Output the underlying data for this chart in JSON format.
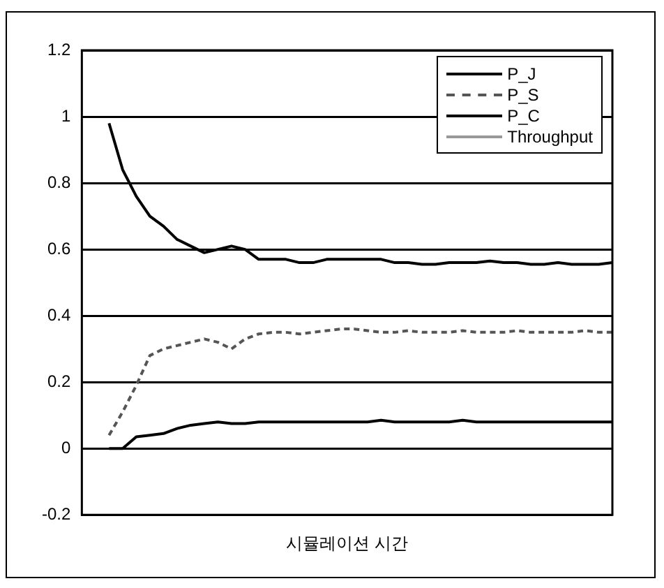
{
  "chart_data": {
    "type": "line",
    "xlabel": "시뮬레이션 시간",
    "categories": [
      null,
      null,
      null,
      null,
      null,
      null,
      null,
      null,
      null,
      null,
      null,
      null,
      null,
      null,
      null,
      null,
      null,
      null,
      null,
      null,
      null,
      null,
      null,
      null,
      null,
      null,
      null,
      null,
      null,
      null,
      null,
      null,
      null,
      null,
      null,
      null,
      null,
      null,
      null,
      null
    ],
    "series": [
      {
        "name": "P_J",
        "color": "#000000",
        "line_style": "solid",
        "values": [
          null,
          null,
          0.98,
          0.84,
          0.76,
          0.7,
          0.67,
          0.63,
          0.61,
          0.59,
          0.6,
          0.61,
          0.6,
          0.57,
          0.57,
          0.57,
          0.56,
          0.56,
          0.57,
          0.57,
          0.57,
          0.57,
          0.57,
          0.56,
          0.56,
          0.555,
          0.555,
          0.56,
          0.56,
          0.56,
          0.565,
          0.56,
          0.56,
          0.555,
          0.555,
          0.56,
          0.555,
          0.555,
          0.555,
          0.56
        ]
      },
      {
        "name": "P_S",
        "color": "#555555",
        "line_style": "dashed",
        "values": [
          null,
          null,
          0.04,
          0.11,
          0.19,
          0.28,
          0.3,
          0.31,
          0.32,
          0.33,
          0.32,
          0.3,
          0.33,
          0.345,
          0.35,
          0.35,
          0.345,
          0.35,
          0.355,
          0.36,
          0.36,
          0.355,
          0.35,
          0.35,
          0.355,
          0.35,
          0.35,
          0.35,
          0.355,
          0.35,
          0.35,
          0.35,
          0.355,
          0.35,
          0.35,
          0.35,
          0.35,
          0.355,
          0.35,
          0.35
        ]
      },
      {
        "name": "P_C",
        "color": "#000000",
        "line_style": "solid",
        "values": [
          null,
          null,
          0,
          0,
          0.035,
          0.04,
          0.045,
          0.06,
          0.07,
          0.075,
          0.08,
          0.075,
          0.075,
          0.08,
          0.08,
          0.08,
          0.08,
          0.08,
          0.08,
          0.08,
          0.08,
          0.08,
          0.085,
          0.08,
          0.08,
          0.08,
          0.08,
          0.08,
          0.085,
          0.08,
          0.08,
          0.08,
          0.08,
          0.08,
          0.08,
          0.08,
          0.08,
          0.08,
          0.08,
          0.08
        ]
      },
      {
        "name": "Throughput",
        "color": "#999999",
        "line_style": "solid",
        "values": [
          null,
          null,
          null,
          null,
          null,
          null,
          null,
          null,
          null,
          null,
          null,
          null,
          null,
          null,
          null,
          null,
          null,
          null,
          null,
          null,
          null,
          null,
          null,
          null,
          null,
          null,
          null,
          null,
          null,
          null,
          null,
          null,
          null,
          null,
          null,
          null,
          null,
          null,
          null,
          null
        ]
      }
    ],
    "ylim": [
      -0.2,
      1.2
    ],
    "yticks": [
      -0.2,
      0,
      0.2,
      0.4,
      0.6,
      0.8,
      1,
      1.2
    ],
    "grid": "y",
    "legend": "top right",
    "marker": "none",
    "tick_labels": "y"
  }
}
